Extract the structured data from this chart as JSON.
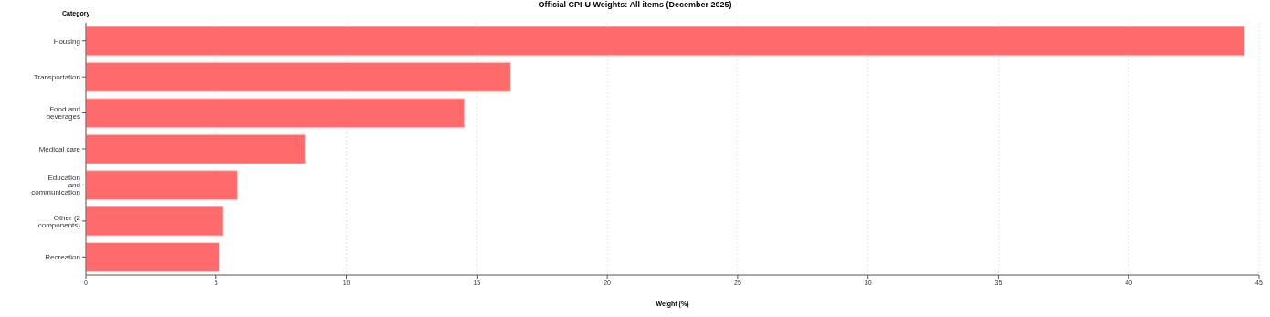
{
  "chart_data": {
    "type": "bar",
    "orientation": "horizontal",
    "title": "Official CPI-U Weights: All items (December 2025)",
    "xlabel": "Weight (%)",
    "ylabel": "Category",
    "categories": [
      "Housing",
      "Transportation",
      "Food and beverages",
      "Medical care",
      "Education and communication",
      "Other (2 components)",
      "Recreation"
    ],
    "values": [
      44.45,
      16.3,
      14.53,
      8.42,
      5.84,
      5.26,
      5.13
    ],
    "color": "#ff6b6b",
    "xlim": [
      0,
      45
    ],
    "xticks": [
      0,
      5,
      10,
      15,
      20,
      25,
      30,
      35,
      40,
      45
    ],
    "grid": "x"
  }
}
